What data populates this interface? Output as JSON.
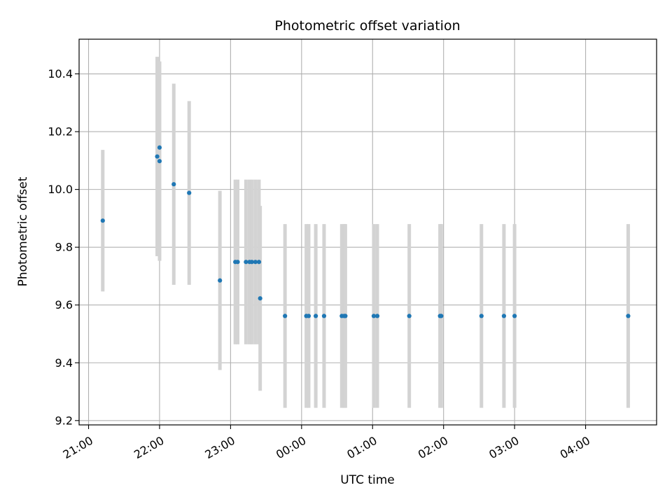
{
  "chart_data": {
    "type": "scatter",
    "title": "Photometric offset variation",
    "xlabel": "UTC time",
    "ylabel": "Photometric offset",
    "x_is_time": true,
    "x_reference_date": "2000-01-01",
    "xlim": [
      "2000-01-01T20:52",
      "2000-01-02T05:00"
    ],
    "ylim": [
      9.185,
      10.52
    ],
    "x_ticks": [
      {
        "label": "21:00",
        "t": "2000-01-01T21:00"
      },
      {
        "label": "22:00",
        "t": "2000-01-01T22:00"
      },
      {
        "label": "23:00",
        "t": "2000-01-01T23:00"
      },
      {
        "label": "00:00",
        "t": "2000-01-02T00:00"
      },
      {
        "label": "01:00",
        "t": "2000-01-02T01:00"
      },
      {
        "label": "02:00",
        "t": "2000-01-02T02:00"
      },
      {
        "label": "03:00",
        "t": "2000-01-02T03:00"
      },
      {
        "label": "04:00",
        "t": "2000-01-02T04:00"
      }
    ],
    "y_ticks": [
      {
        "label": "9.2",
        "v": 9.2
      },
      {
        "label": "9.4",
        "v": 9.4
      },
      {
        "label": "9.6",
        "v": 9.6
      },
      {
        "label": "9.8",
        "v": 9.8
      },
      {
        "label": "10.0",
        "v": 10.0
      },
      {
        "label": "10.2",
        "v": 10.2
      },
      {
        "label": "10.4",
        "v": 10.4
      }
    ],
    "grid": true,
    "series": [
      {
        "marker_color": "#1f77b4",
        "errorbar_color": "#d3d3d3",
        "points": [
          {
            "t": "2000-01-01T21:12",
            "y": 9.892,
            "yerr": 0.245
          },
          {
            "t": "2000-01-01T21:58",
            "y": 10.114,
            "yerr": 0.345
          },
          {
            "t": "2000-01-01T22:00",
            "y": 10.145,
            "yerr": 0.29
          },
          {
            "t": "2000-01-01T22:00",
            "y": 10.098,
            "yerr": 0.345
          },
          {
            "t": "2000-01-01T22:12",
            "y": 10.018,
            "yerr": 0.348
          },
          {
            "t": "2000-01-01T22:25",
            "y": 9.988,
            "yerr": 0.318
          },
          {
            "t": "2000-01-01T22:51",
            "y": 9.685,
            "yerr": 0.31
          },
          {
            "t": "2000-01-01T23:04",
            "y": 9.749,
            "yerr": 0.285
          },
          {
            "t": "2000-01-01T23:06",
            "y": 9.749,
            "yerr": 0.285
          },
          {
            "t": "2000-01-01T23:13",
            "y": 9.749,
            "yerr": 0.285
          },
          {
            "t": "2000-01-01T23:16",
            "y": 9.749,
            "yerr": 0.285
          },
          {
            "t": "2000-01-01T23:18",
            "y": 9.749,
            "yerr": 0.285
          },
          {
            "t": "2000-01-01T23:21",
            "y": 9.749,
            "yerr": 0.285
          },
          {
            "t": "2000-01-01T23:24",
            "y": 9.749,
            "yerr": 0.285
          },
          {
            "t": "2000-01-01T23:25",
            "y": 9.623,
            "yerr": 0.32
          },
          {
            "t": "2000-01-01T23:46",
            "y": 9.562,
            "yerr": 0.318
          },
          {
            "t": "2000-01-02T00:04",
            "y": 9.562,
            "yerr": 0.318
          },
          {
            "t": "2000-01-02T00:06",
            "y": 9.562,
            "yerr": 0.318
          },
          {
            "t": "2000-01-02T00:12",
            "y": 9.562,
            "yerr": 0.318
          },
          {
            "t": "2000-01-02T00:19",
            "y": 9.562,
            "yerr": 0.318
          },
          {
            "t": "2000-01-02T00:34",
            "y": 9.562,
            "yerr": 0.318
          },
          {
            "t": "2000-01-02T00:36",
            "y": 9.562,
            "yerr": 0.318
          },
          {
            "t": "2000-01-02T00:37",
            "y": 9.562,
            "yerr": 0.318
          },
          {
            "t": "2000-01-02T01:01",
            "y": 9.562,
            "yerr": 0.318
          },
          {
            "t": "2000-01-02T01:04",
            "y": 9.562,
            "yerr": 0.318
          },
          {
            "t": "2000-01-02T01:31",
            "y": 9.562,
            "yerr": 0.318
          },
          {
            "t": "2000-01-02T01:57",
            "y": 9.562,
            "yerr": 0.318
          },
          {
            "t": "2000-01-02T01:58",
            "y": 9.562,
            "yerr": 0.318
          },
          {
            "t": "2000-01-02T02:32",
            "y": 9.562,
            "yerr": 0.318
          },
          {
            "t": "2000-01-02T02:51",
            "y": 9.562,
            "yerr": 0.318
          },
          {
            "t": "2000-01-02T03:00",
            "y": 9.562,
            "yerr": 0.318
          },
          {
            "t": "2000-01-02T04:36",
            "y": 9.562,
            "yerr": 0.318
          }
        ]
      }
    ]
  }
}
